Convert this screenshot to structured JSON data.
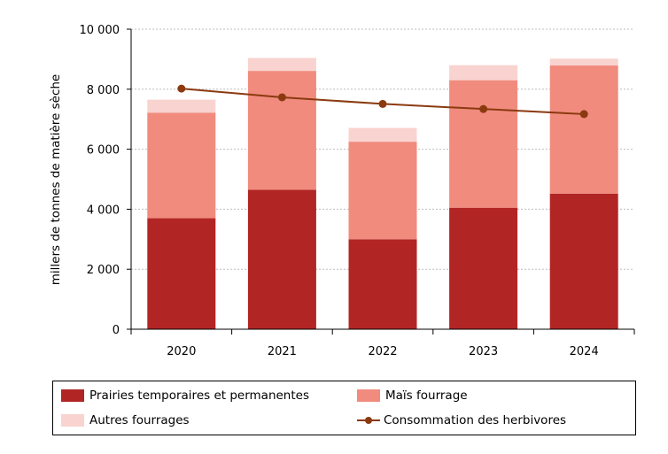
{
  "chart_data": {
    "type": "bar",
    "stacked": true,
    "categories": [
      "2020",
      "2021",
      "2022",
      "2023",
      "2024"
    ],
    "series": [
      {
        "name": "Prairies temporaires et permanentes",
        "type": "bar",
        "color": "#b22525",
        "values": [
          3700,
          4650,
          3000,
          4050,
          4520
        ]
      },
      {
        "name": "Maïs fourrage",
        "type": "bar",
        "color": "#f08b7e",
        "values": [
          3520,
          3960,
          3250,
          4250,
          4270
        ]
      },
      {
        "name": "Autres fourrages",
        "type": "bar",
        "color": "#f9d3cf",
        "values": [
          430,
          430,
          460,
          500,
          230
        ]
      },
      {
        "name": "Consommation des herbivores",
        "type": "line",
        "color": "#8b3a10",
        "values": [
          8020,
          7730,
          7510,
          7340,
          7170
        ]
      }
    ],
    "ylabel": "millers de tonnes de matière sèche",
    "ylim": [
      0,
      10000
    ],
    "yticks": [
      0,
      2000,
      4000,
      6000,
      8000,
      10000
    ],
    "ytick_labels": [
      "0",
      "2 000",
      "4 000",
      "6 000",
      "8 000",
      "10 000"
    ],
    "grid": true,
    "legend_position": "bottom"
  }
}
